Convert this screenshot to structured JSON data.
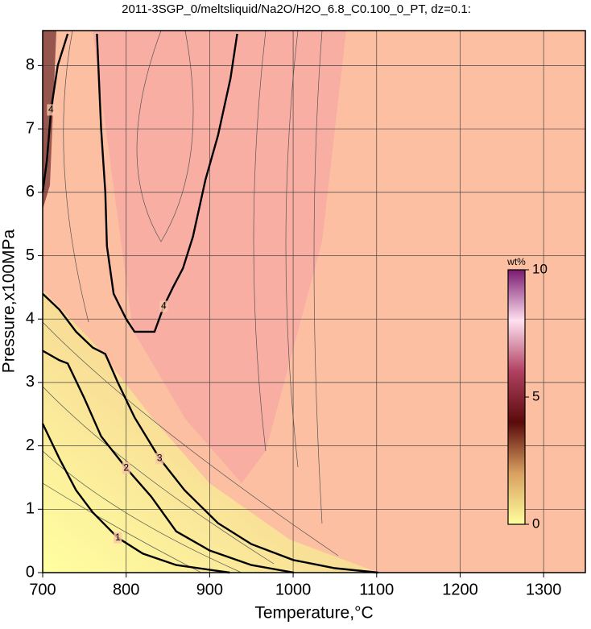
{
  "chart_data": {
    "type": "contour",
    "title": "2011-3SGP_0/meltsliquid/Na2O/H2O_6.8_C0.100_0_PT, dz=0.1:",
    "x_label": "Temperature,°C",
    "y_label": "Pressure,x100MPa",
    "xlim": [
      700,
      1350
    ],
    "ylim": [
      0,
      8.5
    ],
    "xticks": [
      700,
      800,
      900,
      1000,
      1100,
      1200,
      1300
    ],
    "yticks": [
      0,
      1,
      2,
      3,
      4,
      5,
      6,
      7,
      8
    ],
    "grid": true,
    "contours": [
      {
        "level": 1,
        "x": [
          700,
          720,
          740,
          760,
          790,
          820,
          860,
          924
        ],
        "y": [
          2.35,
          1.8,
          1.3,
          0.95,
          0.55,
          0.3,
          0.12,
          0
        ]
      },
      {
        "level": 2,
        "x": [
          700,
          720,
          730,
          750,
          770,
          800,
          830,
          860,
          900,
          950,
          1001
        ],
        "y": [
          3.5,
          3.35,
          3.3,
          2.75,
          2.15,
          1.65,
          1.2,
          0.65,
          0.35,
          0.12,
          0
        ]
      },
      {
        "level": 3,
        "x": [
          700,
          720,
          740,
          760,
          775,
          790,
          810,
          840,
          870,
          910,
          950,
          1000,
          1050,
          1102
        ],
        "y": [
          4.4,
          4.15,
          3.8,
          3.55,
          3.45,
          3.0,
          2.45,
          1.8,
          1.3,
          0.78,
          0.45,
          0.2,
          0.07,
          0
        ]
      },
      {
        "level": 4,
        "x": [
          765,
          770,
          775,
          777,
          785,
          800,
          810,
          834,
          845,
          856,
          868,
          880,
          895,
          910,
          925,
          933
        ],
        "y": [
          8.5,
          7.0,
          6.0,
          5.15,
          4.4,
          4.0,
          3.8,
          3.8,
          4.2,
          4.5,
          4.8,
          5.3,
          6.2,
          6.9,
          7.8,
          8.5
        ]
      },
      {
        "level": 4,
        "x": [
          730,
          718,
          710,
          705,
          700
        ],
        "y": [
          8.5,
          8.0,
          7.3,
          6.5,
          6.0
        ]
      }
    ],
    "colorbar": {
      "label": "wt%",
      "lim": [
        0,
        10
      ],
      "ticks": [
        0,
        5,
        10
      ],
      "colors": [
        "#ffff9c",
        "#d8a060",
        "#5a0a0a",
        "#b04060",
        "#ffe0f0",
        "#7a1a70"
      ]
    }
  }
}
